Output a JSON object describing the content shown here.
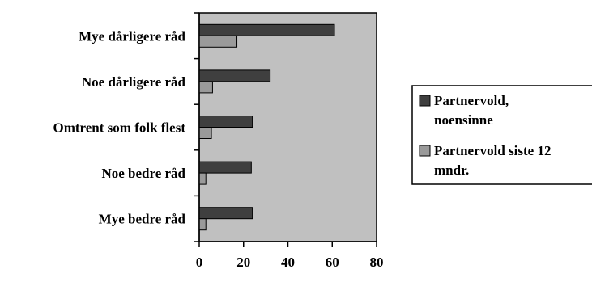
{
  "chart_data": {
    "type": "bar",
    "orientation": "horizontal",
    "categories": [
      "Mye dårligere råd",
      "Noe dårligere råd",
      "Omtrent som folk flest",
      "Noe bedre råd",
      "Mye bedre råd"
    ],
    "series": [
      {
        "name": "Partnervold, noensinne",
        "color": "#3f3f3f",
        "values": [
          61,
          32,
          24,
          23.5,
          24
        ],
        "legend_lines": [
          "Partnervold,",
          "noensinne"
        ]
      },
      {
        "name": "Partnervold siste 12 mndr.",
        "color": "#9a9a9a",
        "values": [
          17,
          6,
          5.5,
          3,
          3
        ],
        "legend_lines": [
          "Partnervold siste 12",
          "mndr."
        ]
      }
    ],
    "xlim": [
      0,
      80
    ],
    "xticks": [
      "0",
      "20",
      "40",
      "60",
      "80"
    ],
    "plot_background": "#c0c0c0",
    "grid": false,
    "legend_position": "right",
    "title": "",
    "xlabel": "",
    "ylabel": ""
  }
}
